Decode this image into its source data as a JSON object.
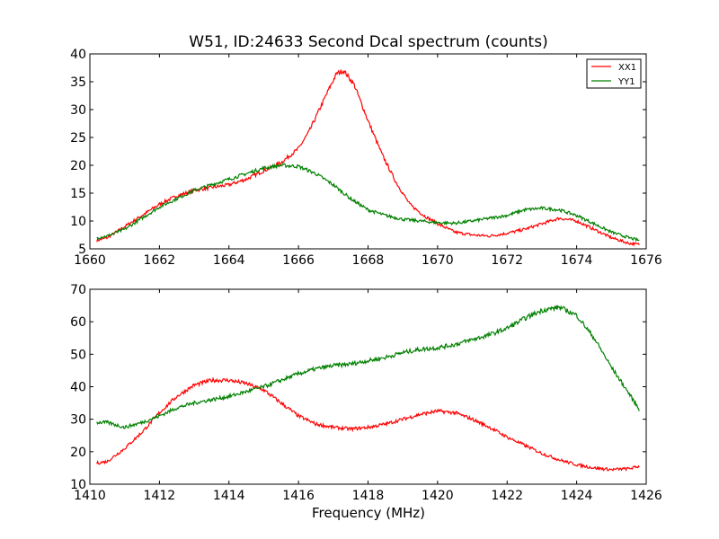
{
  "chart_data": [
    {
      "type": "line",
      "title": "W51, ID:24633 Second Dcal spectrum (counts)",
      "xlabel": "",
      "ylabel": "",
      "xlim": [
        1660,
        1676
      ],
      "ylim": [
        5,
        40
      ],
      "xticks": [
        "1660",
        "1662",
        "1664",
        "1666",
        "1668",
        "1670",
        "1672",
        "1674",
        "1676"
      ],
      "yticks": [
        "5",
        "10",
        "15",
        "20",
        "25",
        "30",
        "35",
        "40"
      ],
      "legend": "top-right",
      "grid": false,
      "series": [
        {
          "name": "XX1",
          "color": "#ff0000",
          "x": [
            1660.2,
            1660.5,
            1661.0,
            1661.5,
            1662.0,
            1662.5,
            1663.0,
            1663.5,
            1664.0,
            1664.5,
            1665.0,
            1665.5,
            1666.0,
            1666.3,
            1666.6,
            1666.9,
            1667.1,
            1667.3,
            1667.6,
            1668.0,
            1668.4,
            1668.8,
            1669.2,
            1669.6,
            1670.0,
            1670.5,
            1671.0,
            1671.5,
            1672.0,
            1672.5,
            1673.0,
            1673.5,
            1674.0,
            1674.5,
            1675.0,
            1675.5,
            1675.8
          ],
          "y": [
            6.5,
            7.0,
            9.0,
            11.0,
            13.0,
            14.5,
            15.5,
            16.0,
            16.5,
            17.5,
            19.0,
            20.5,
            23.0,
            26.0,
            30.0,
            34.0,
            36.5,
            37.0,
            34.5,
            28.0,
            22.0,
            17.0,
            13.0,
            11.0,
            9.5,
            8.0,
            7.5,
            7.3,
            7.8,
            8.5,
            9.5,
            10.5,
            10.0,
            8.5,
            7.0,
            6.0,
            5.8
          ]
        },
        {
          "name": "YY1",
          "color": "#008000",
          "x": [
            1660.2,
            1660.5,
            1661.0,
            1661.5,
            1662.0,
            1662.5,
            1663.0,
            1663.5,
            1664.0,
            1664.5,
            1665.0,
            1665.5,
            1666.0,
            1666.5,
            1667.0,
            1667.5,
            1668.0,
            1668.5,
            1669.0,
            1669.5,
            1670.0,
            1670.5,
            1671.0,
            1671.5,
            1672.0,
            1672.5,
            1673.0,
            1673.5,
            1674.0,
            1674.5,
            1675.0,
            1675.5,
            1675.8
          ],
          "y": [
            7.0,
            7.3,
            8.5,
            10.5,
            12.5,
            14.0,
            15.5,
            16.5,
            17.5,
            18.5,
            19.5,
            20.0,
            19.8,
            18.5,
            16.5,
            14.0,
            12.0,
            11.0,
            10.3,
            10.0,
            9.7,
            9.6,
            10.0,
            10.5,
            11.0,
            12.0,
            12.3,
            12.0,
            11.0,
            9.5,
            8.0,
            7.0,
            6.5
          ]
        }
      ]
    },
    {
      "type": "line",
      "title": "",
      "xlabel": "Frequency (MHz)",
      "ylabel": "",
      "xlim": [
        1410,
        1426
      ],
      "ylim": [
        10,
        70
      ],
      "xticks": [
        "1410",
        "1412",
        "1414",
        "1416",
        "1418",
        "1420",
        "1422",
        "1424",
        "1426"
      ],
      "yticks": [
        "10",
        "20",
        "30",
        "40",
        "50",
        "60",
        "70"
      ],
      "grid": false,
      "series": [
        {
          "color": "#ff0000",
          "x": [
            1410.2,
            1410.5,
            1411.0,
            1411.5,
            1412.0,
            1412.5,
            1413.0,
            1413.5,
            1414.0,
            1414.5,
            1415.0,
            1415.5,
            1416.0,
            1416.5,
            1417.0,
            1417.5,
            1418.0,
            1418.5,
            1419.0,
            1419.5,
            1420.0,
            1420.5,
            1421.0,
            1421.5,
            1422.0,
            1422.5,
            1423.0,
            1423.5,
            1424.0,
            1424.5,
            1425.0,
            1425.5,
            1425.8
          ],
          "y": [
            16.5,
            17.0,
            21.0,
            26.0,
            32.0,
            37.0,
            40.5,
            42.0,
            42.0,
            41.0,
            39.0,
            35.0,
            31.0,
            28.5,
            27.5,
            27.0,
            27.5,
            28.5,
            30.0,
            31.5,
            32.5,
            32.0,
            30.0,
            27.5,
            24.5,
            22.0,
            19.5,
            17.5,
            16.0,
            15.0,
            14.5,
            14.8,
            15.5
          ]
        },
        {
          "color": "#008000",
          "x": [
            1410.2,
            1410.5,
            1411.0,
            1411.5,
            1412.0,
            1412.5,
            1413.0,
            1413.5,
            1414.0,
            1414.5,
            1415.0,
            1415.5,
            1416.0,
            1416.5,
            1417.0,
            1417.5,
            1418.0,
            1418.5,
            1419.0,
            1419.5,
            1420.0,
            1420.5,
            1421.0,
            1421.5,
            1422.0,
            1422.5,
            1423.0,
            1423.5,
            1424.0,
            1424.5,
            1425.0,
            1425.5,
            1425.8
          ],
          "y": [
            29.0,
            29.0,
            27.5,
            29.0,
            31.0,
            33.5,
            35.0,
            36.0,
            37.0,
            38.5,
            40.0,
            42.0,
            44.0,
            45.5,
            46.5,
            47.0,
            48.0,
            49.0,
            50.5,
            51.5,
            52.0,
            53.0,
            54.5,
            56.0,
            58.0,
            61.0,
            63.5,
            64.5,
            62.0,
            55.0,
            46.0,
            38.0,
            33.0
          ]
        }
      ]
    }
  ]
}
